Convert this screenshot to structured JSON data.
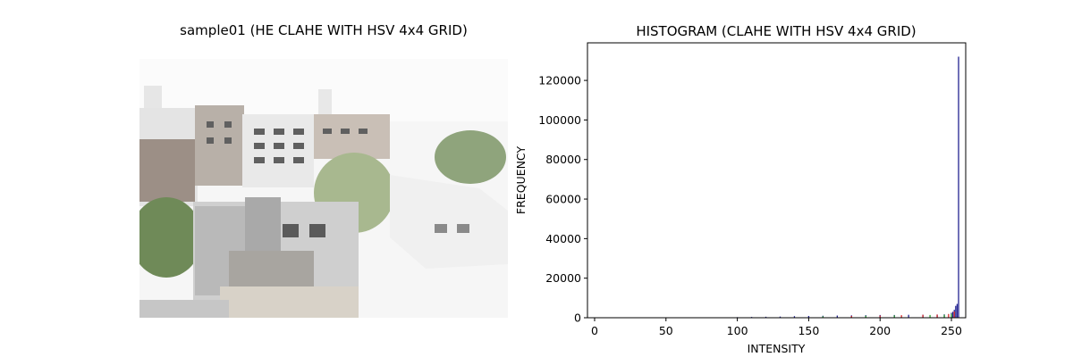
{
  "left_panel": {
    "title": "sample01 (HE CLAHE WITH HSV 4x4 GRID)"
  },
  "chart_data": {
    "type": "bar",
    "title": "HISTOGRAM (CLAHE WITH HSV 4x4 GRID)",
    "xlabel": "INTENSITY",
    "ylabel": "FREQUENCY",
    "xlim": [
      -5,
      260
    ],
    "ylim": [
      0,
      139000
    ],
    "xticks": [
      0,
      50,
      100,
      150,
      200,
      250
    ],
    "yticks": [
      0,
      20000,
      40000,
      60000,
      80000,
      100000,
      120000
    ],
    "grid": false,
    "legend": "none",
    "series": [
      {
        "color": "#1f1f8f",
        "x": [
          90,
          100,
          110,
          120,
          130,
          140,
          150,
          160,
          170,
          180,
          190,
          200,
          210,
          220,
          230,
          240,
          245,
          250,
          251,
          252,
          253,
          254,
          255
        ],
        "values": [
          200,
          300,
          400,
          500,
          600,
          800,
          900,
          1000,
          1100,
          1200,
          1300,
          1400,
          1400,
          1500,
          1500,
          1600,
          1700,
          2500,
          3000,
          4000,
          6000,
          7000,
          132000
        ]
      },
      {
        "color": "#d62728",
        "x": [
          180,
          200,
          215,
          230,
          240,
          248,
          252
        ],
        "values": [
          900,
          1100,
          1300,
          1500,
          1600,
          1900,
          3200
        ]
      },
      {
        "color": "#2ca02c",
        "x": [
          160,
          190,
          210,
          235,
          245,
          250
        ],
        "values": [
          700,
          1000,
          1200,
          1400,
          1500,
          2000
        ]
      }
    ]
  }
}
